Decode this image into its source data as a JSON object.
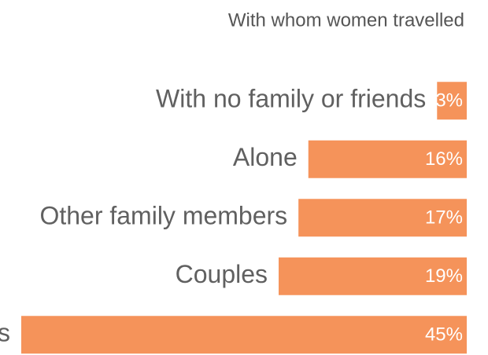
{
  "chart_data": {
    "type": "barh",
    "subtitle": "With whom women travelled",
    "categories": [
      "With no family or friends",
      "Alone",
      "Other family members",
      "Couples",
      "s"
    ],
    "values": [
      3,
      16,
      17,
      19,
      45
    ],
    "value_labels": [
      "3%",
      "16%",
      "17%",
      "19%",
      "45%"
    ],
    "color": "#f5935a",
    "xlim": [
      0,
      45
    ]
  }
}
